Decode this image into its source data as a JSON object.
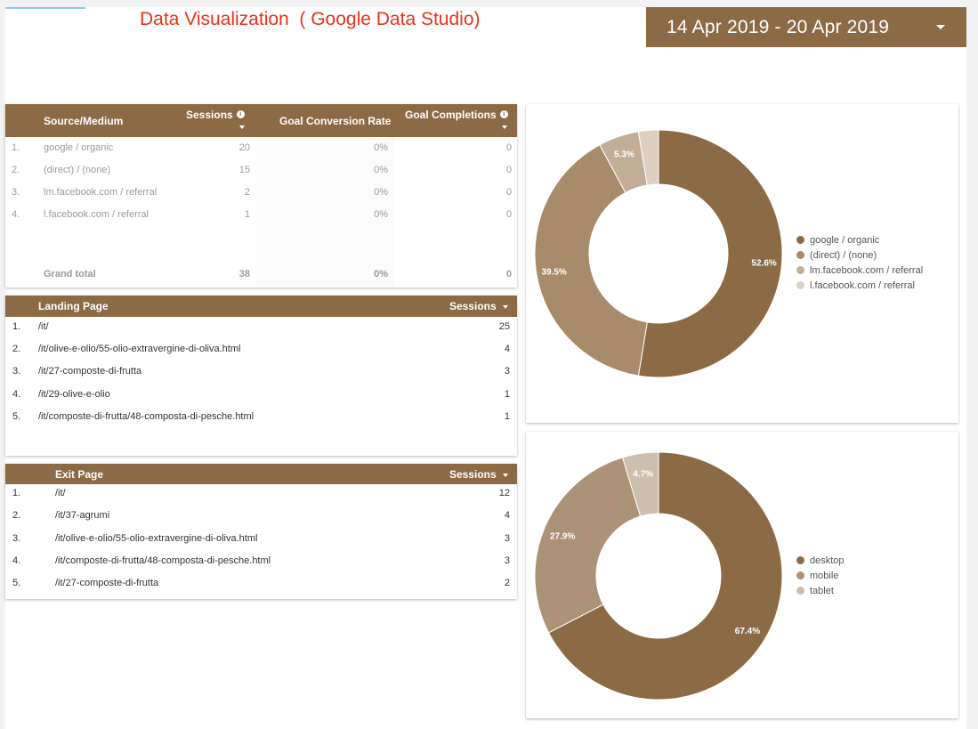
{
  "report": {
    "title": "Data Visualization  ( Google Data Studio)",
    "date_range": "14 Apr 2019 - 20 Apr 2019"
  },
  "source_table": {
    "headers": {
      "dimension": "Source/Medium",
      "sessions": "Sessions",
      "goal_conversion_rate": "Goal Conversion Rate",
      "goal_completions": "Goal Completions"
    },
    "rows": [
      {
        "index": "1.",
        "source": "google / organic",
        "sessions": "20",
        "gcr": "0%",
        "gc": "0"
      },
      {
        "index": "2.",
        "source": "(direct) / (none)",
        "sessions": "15",
        "gcr": "0%",
        "gc": "0"
      },
      {
        "index": "3.",
        "source": "lm.facebook.com / referral",
        "sessions": "2",
        "gcr": "0%",
        "gc": "0"
      },
      {
        "index": "4.",
        "source": "l.facebook.com / referral",
        "sessions": "1",
        "gcr": "0%",
        "gc": "0"
      }
    ],
    "total": {
      "label": "Grand total",
      "sessions": "38",
      "gcr": "0%",
      "gc": "0"
    }
  },
  "landing_table": {
    "headers": {
      "dimension": "Landing Page",
      "sessions": "Sessions"
    },
    "rows": [
      {
        "index": "1.",
        "page": "/it/",
        "sessions": "25"
      },
      {
        "index": "2.",
        "page": "/it/olive-e-olio/55-olio-extravergine-di-oliva.html",
        "sessions": "4"
      },
      {
        "index": "3.",
        "page": "/it/27-composte-di-frutta",
        "sessions": "3"
      },
      {
        "index": "4.",
        "page": "/it/29-olive-e-olio",
        "sessions": "1"
      },
      {
        "index": "5.",
        "page": "/it/composte-di-frutta/48-composta-di-pesche.html",
        "sessions": "1"
      }
    ]
  },
  "exit_table": {
    "headers": {
      "dimension": "Exit Page",
      "sessions": "Sessions"
    },
    "rows": [
      {
        "index": "1.",
        "page": "/it/",
        "sessions": "12"
      },
      {
        "index": "2.",
        "page": "/it/37-agrumi",
        "sessions": "4"
      },
      {
        "index": "3.",
        "page": "/it/olive-e-olio/55-olio-extravergine-di-oliva.html",
        "sessions": "3"
      },
      {
        "index": "4.",
        "page": "/it/composte-di-frutta/48-composta-di-pesche.html",
        "sessions": "3"
      },
      {
        "index": "5.",
        "page": "/it/27-composte-di-frutta",
        "sessions": "2"
      }
    ]
  },
  "chart_data": [
    {
      "type": "pie",
      "title": "",
      "donut": true,
      "legend_position": "right",
      "categories": [
        "google / organic",
        "(direct) / (none)",
        "lm.facebook.com / referral",
        "l.facebook.com / referral"
      ],
      "values": [
        52.6,
        39.5,
        5.3,
        2.6
      ],
      "labels": [
        "52.6%",
        "39.5%",
        "5.3%",
        ""
      ],
      "colors": [
        "#8c6a45",
        "#a88b6b",
        "#c3ad96",
        "#ddd0c3"
      ]
    },
    {
      "type": "pie",
      "title": "",
      "donut": true,
      "legend_position": "right",
      "categories": [
        "desktop",
        "mobile",
        "tablet"
      ],
      "values": [
        67.4,
        27.9,
        4.7
      ],
      "labels": [
        "67.4%",
        "27.9%",
        "4.7%"
      ],
      "colors": [
        "#8c6a45",
        "#ac9378",
        "#cdbfb0"
      ]
    }
  ],
  "theme": {
    "header_color": "#8c6a45",
    "title_color": "#e8321a"
  }
}
